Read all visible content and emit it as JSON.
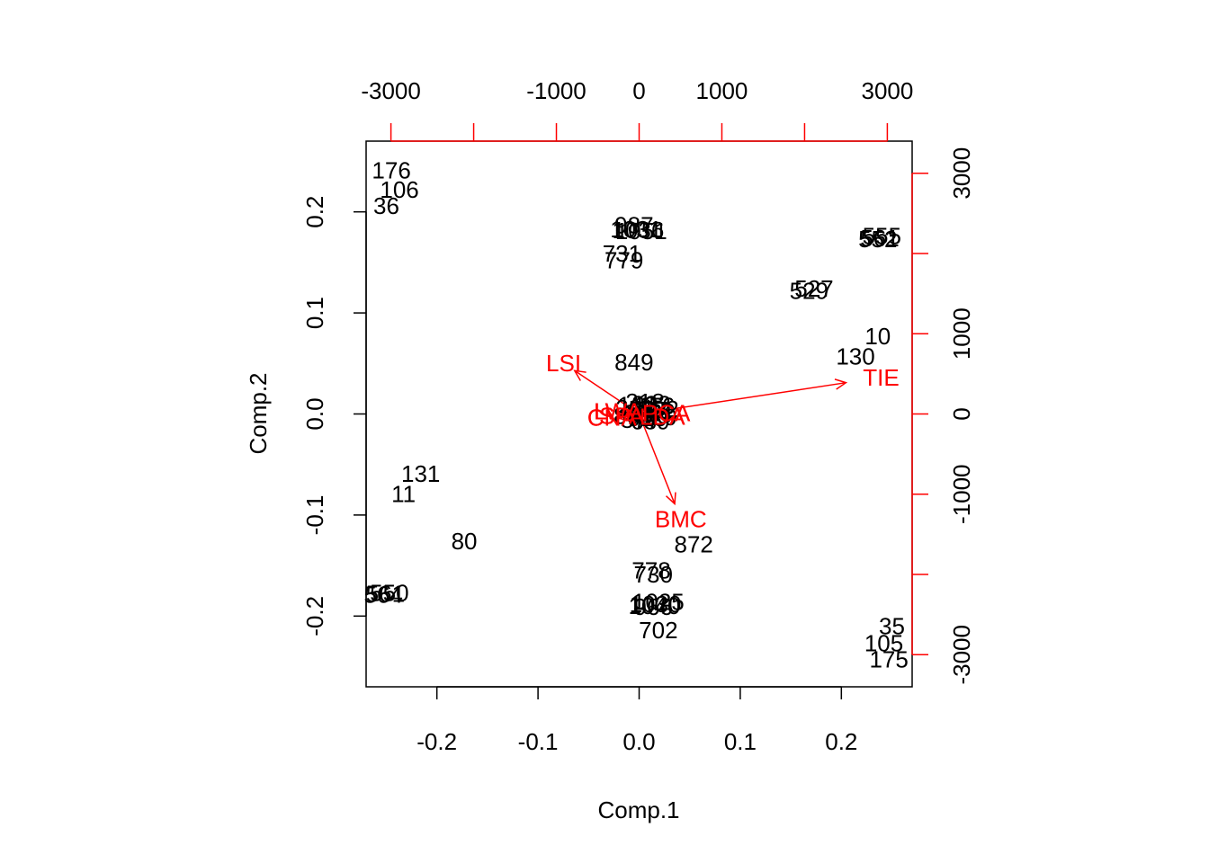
{
  "chart_data": {
    "type": "scatter",
    "subtype": "biplot",
    "title": "",
    "xlabel": "Comp.1",
    "ylabel": "Comp.2",
    "xlim": [
      -0.27,
      0.27
    ],
    "ylim": [
      -0.27,
      0.27
    ],
    "x_ticks": [
      -0.2,
      -0.1,
      0.0,
      0.1,
      0.2
    ],
    "x_tick_labels": [
      "-0.2",
      "-0.1",
      "0.0",
      "0.1",
      "0.2"
    ],
    "y_ticks": [
      -0.2,
      -0.1,
      0.0,
      0.1,
      0.2
    ],
    "y_tick_labels": [
      "-0.2",
      "-0.1",
      "0.0",
      "0.1",
      "0.2"
    ],
    "loading_xlim": [
      -3300,
      3300
    ],
    "loading_ylim": [
      -3400,
      3400
    ],
    "top_ticks": [
      -3000,
      -2000,
      -1000,
      0,
      1000,
      2000,
      3000
    ],
    "top_tick_labels": [
      "-3000",
      "",
      "-1000",
      "0",
      "1000",
      "",
      "3000"
    ],
    "right_ticks": [
      -3000,
      -2000,
      -1000,
      0,
      1000,
      2000,
      3000
    ],
    "right_tick_labels": [
      "-3000",
      "",
      "-1000",
      "0",
      "1000",
      "",
      "3000"
    ],
    "grid": false,
    "legend": "none",
    "colors": {
      "points": "#000000",
      "loadings": "#ff0000",
      "axes": "#000000"
    },
    "scores": [
      {
        "label": "176",
        "x": -0.245,
        "y": 0.241
      },
      {
        "label": "106",
        "x": -0.237,
        "y": 0.222
      },
      {
        "label": "36",
        "x": -0.25,
        "y": 0.206
      },
      {
        "label": "987",
        "x": -0.005,
        "y": 0.187
      },
      {
        "label": "1031",
        "x": -0.003,
        "y": 0.183
      },
      {
        "label": "1036",
        "x": -0.001,
        "y": 0.182
      },
      {
        "label": "1051",
        "x": 0.002,
        "y": 0.181
      },
      {
        "label": "731",
        "x": -0.017,
        "y": 0.159
      },
      {
        "label": "779",
        "x": -0.015,
        "y": 0.152
      },
      {
        "label": "555",
        "x": 0.24,
        "y": 0.176
      },
      {
        "label": "561",
        "x": 0.238,
        "y": 0.174
      },
      {
        "label": "552",
        "x": 0.236,
        "y": 0.173
      },
      {
        "label": "527",
        "x": 0.173,
        "y": 0.124
      },
      {
        "label": "529",
        "x": 0.168,
        "y": 0.122
      },
      {
        "label": "10",
        "x": 0.236,
        "y": 0.077
      },
      {
        "label": "130",
        "x": 0.214,
        "y": 0.057
      },
      {
        "label": "849",
        "x": -0.005,
        "y": 0.051
      },
      {
        "label": "131",
        "x": -0.216,
        "y": -0.059
      },
      {
        "label": "11",
        "x": -0.233,
        "y": -0.079
      },
      {
        "label": "80",
        "x": -0.173,
        "y": -0.126
      },
      {
        "label": "872",
        "x": 0.054,
        "y": -0.129
      },
      {
        "label": "778",
        "x": 0.012,
        "y": -0.155
      },
      {
        "label": "730",
        "x": 0.014,
        "y": -0.159
      },
      {
        "label": "550",
        "x": -0.247,
        "y": -0.177
      },
      {
        "label": "561",
        "x": -0.251,
        "y": -0.178
      },
      {
        "label": "564",
        "x": -0.253,
        "y": -0.179
      },
      {
        "label": "1025",
        "x": 0.019,
        "y": -0.186
      },
      {
        "label": "1030",
        "x": 0.016,
        "y": -0.188
      },
      {
        "label": "1040",
        "x": 0.015,
        "y": -0.19
      },
      {
        "label": "966",
        "x": 0.014,
        "y": -0.191
      },
      {
        "label": "702",
        "x": 0.019,
        "y": -0.214
      },
      {
        "label": "35",
        "x": 0.25,
        "y": -0.21
      },
      {
        "label": "105",
        "x": 0.242,
        "y": -0.227
      },
      {
        "label": "175",
        "x": 0.247,
        "y": -0.243
      }
    ],
    "cluster": [
      {
        "label": "318",
        "x": 0.006,
        "y": 0.012
      },
      {
        "label": "322",
        "x": 0.012,
        "y": 0.01
      },
      {
        "label": "456",
        "x": 0.016,
        "y": 0.008
      },
      {
        "label": "201",
        "x": -0.004,
        "y": 0.006
      },
      {
        "label": "257",
        "x": 0.009,
        "y": 0.004
      },
      {
        "label": "612",
        "x": 0.003,
        "y": 0.001
      },
      {
        "label": "744",
        "x": 0.014,
        "y": 0.0
      },
      {
        "label": "803",
        "x": -0.006,
        "y": -0.002
      },
      {
        "label": "915",
        "x": 0.008,
        "y": -0.004
      },
      {
        "label": "420",
        "x": 0.018,
        "y": -0.003
      },
      {
        "label": "377",
        "x": 0.001,
        "y": -0.006
      },
      {
        "label": "689",
        "x": 0.011,
        "y": -0.007
      },
      {
        "label": "143",
        "x": -0.002,
        "y": 0.009
      },
      {
        "label": "592",
        "x": 0.02,
        "y": 0.005
      }
    ],
    "loadings": [
      {
        "label": "LSI",
        "x": -780,
        "y": 540
      },
      {
        "label": "TIE",
        "x": 2500,
        "y": 390
      },
      {
        "label": "BMC",
        "x": 430,
        "y": -1120
      },
      {
        "label": "LWA",
        "x": -220,
        "y": 30
      },
      {
        "label": "CNA",
        "x": -280,
        "y": -40
      },
      {
        "label": "PCA",
        "x": 280,
        "y": 10
      },
      {
        "label": "LDA",
        "x": 240,
        "y": -30
      },
      {
        "label": "SPA",
        "x": -180,
        "y": -20
      }
    ]
  }
}
